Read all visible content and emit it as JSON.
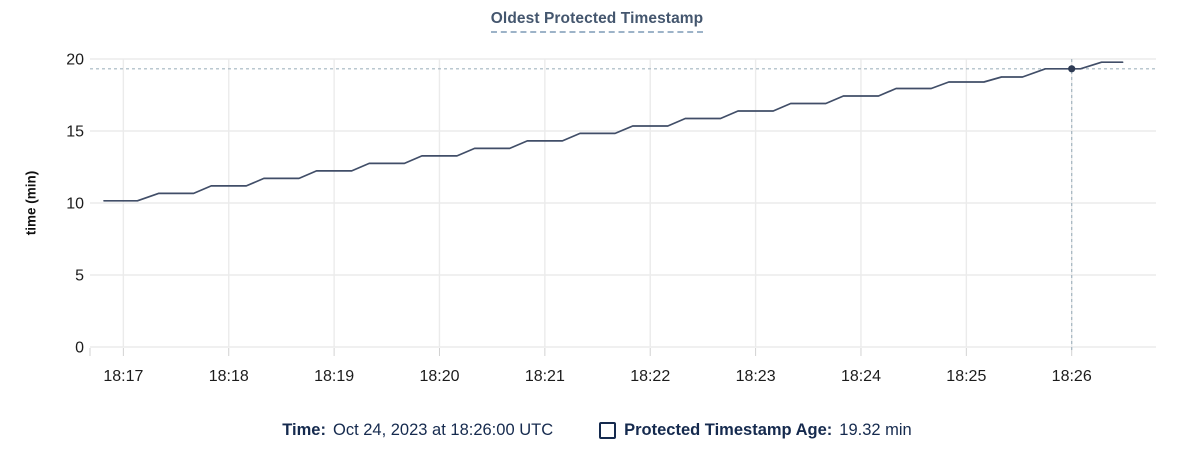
{
  "chart_data": {
    "type": "line",
    "title": "Oldest Protected Timestamp",
    "xlabel": "",
    "ylabel": "time (min)",
    "ylim": [
      0,
      20
    ],
    "yticks": [
      0,
      5,
      10,
      15,
      20
    ],
    "xticks": [
      "18:17",
      "18:18",
      "18:19",
      "18:20",
      "18:21",
      "18:22",
      "18:23",
      "18:24",
      "18:25",
      "18:26"
    ],
    "x_domain": [
      "18:16:41",
      "18:26:48"
    ],
    "grid": true,
    "legend_position": "bottom",
    "series": [
      {
        "name": "Protected Timestamp Age",
        "unit": "min",
        "points": [
          [
            "18:16:49",
            10.15
          ],
          [
            "18:17:08",
            10.15
          ],
          [
            "18:17:20",
            10.67
          ],
          [
            "18:17:40",
            10.67
          ],
          [
            "18:17:50",
            11.19
          ],
          [
            "18:18:10",
            11.19
          ],
          [
            "18:18:20",
            11.71
          ],
          [
            "18:18:40",
            11.71
          ],
          [
            "18:18:50",
            12.23
          ],
          [
            "18:19:10",
            12.23
          ],
          [
            "18:19:20",
            12.75
          ],
          [
            "18:19:40",
            12.75
          ],
          [
            "18:19:50",
            13.27
          ],
          [
            "18:20:10",
            13.27
          ],
          [
            "18:20:20",
            13.79
          ],
          [
            "18:20:40",
            13.79
          ],
          [
            "18:20:50",
            14.31
          ],
          [
            "18:21:10",
            14.31
          ],
          [
            "18:21:20",
            14.83
          ],
          [
            "18:21:40",
            14.83
          ],
          [
            "18:21:50",
            15.35
          ],
          [
            "18:22:10",
            15.35
          ],
          [
            "18:22:20",
            15.87
          ],
          [
            "18:22:40",
            15.87
          ],
          [
            "18:22:50",
            16.39
          ],
          [
            "18:23:10",
            16.39
          ],
          [
            "18:23:20",
            16.91
          ],
          [
            "18:23:40",
            16.91
          ],
          [
            "18:23:50",
            17.43
          ],
          [
            "18:24:10",
            17.43
          ],
          [
            "18:24:20",
            17.95
          ],
          [
            "18:24:40",
            17.95
          ],
          [
            "18:24:50",
            18.4
          ],
          [
            "18:25:10",
            18.4
          ],
          [
            "18:25:20",
            18.75
          ],
          [
            "18:25:32",
            18.75
          ],
          [
            "18:25:45",
            19.32
          ],
          [
            "18:26:05",
            19.32
          ],
          [
            "18:26:17",
            19.78
          ],
          [
            "18:26:29",
            19.78
          ]
        ]
      }
    ],
    "hover": {
      "time": "18:26:00",
      "value": 19.32
    }
  },
  "legend": {
    "time_label": "Time:",
    "time_value": "Oct 24, 2023 at 18:26:00 UTC",
    "series_label": "Protected Timestamp Age:",
    "series_value": "19.32 min"
  },
  "colors": {
    "title": "#44566e",
    "title_underline": "#9db3c8",
    "legend_text": "#152a4e",
    "axis_text": "#1c1c1c",
    "grid": "#ebebeb",
    "tick": "#d2d2d2",
    "line": "#414e68",
    "dot": "#2e3b54",
    "crosshair": "#a4b5c0"
  }
}
